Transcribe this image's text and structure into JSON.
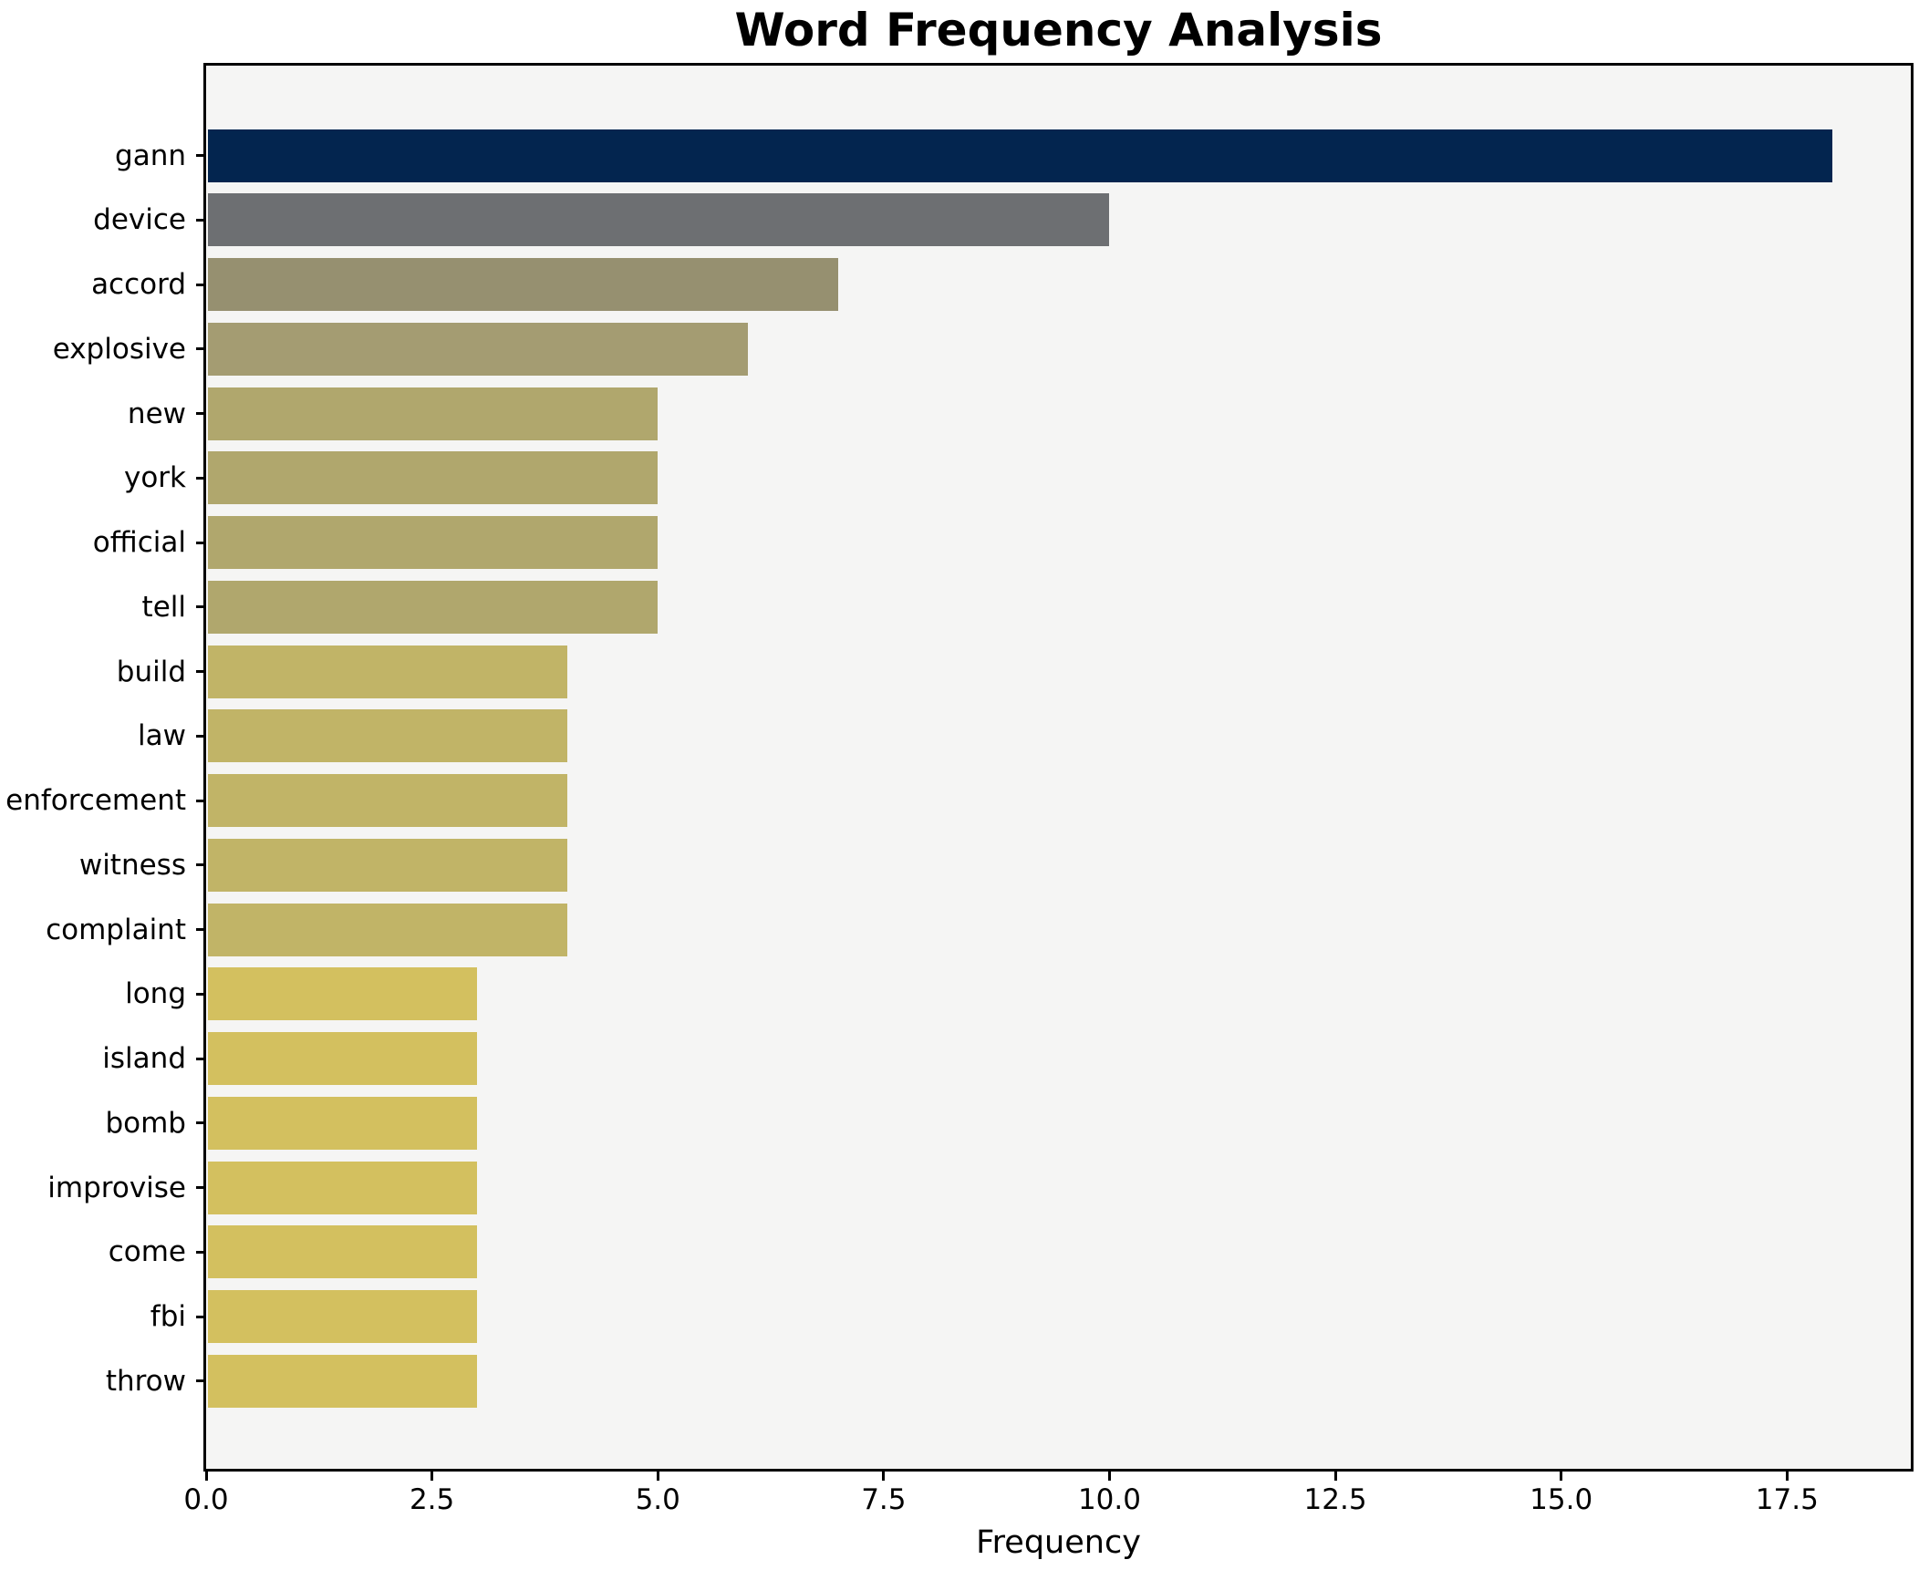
{
  "title": "Word Frequency Analysis",
  "chart_data": {
    "type": "bar",
    "orientation": "horizontal",
    "title": "Word Frequency Analysis",
    "xlabel": "Frequency",
    "ylabel": "",
    "categories": [
      "gann",
      "device",
      "accord",
      "explosive",
      "new",
      "york",
      "official",
      "tell",
      "build",
      "law",
      "enforcement",
      "witness",
      "complaint",
      "long",
      "island",
      "bomb",
      "improvise",
      "come",
      "fbi",
      "throw"
    ],
    "values": [
      18,
      10,
      7,
      6,
      5,
      5,
      5,
      5,
      4,
      4,
      4,
      4,
      4,
      3,
      3,
      3,
      3,
      3,
      3,
      3
    ],
    "bar_colors": [
      "#03254f",
      "#6d6f72",
      "#969070",
      "#a49c72",
      "#b0a76d",
      "#b0a76d",
      "#b0a76d",
      "#b0a76d",
      "#c1b467",
      "#c1b467",
      "#c1b467",
      "#c1b467",
      "#c1b467",
      "#d3c05f",
      "#d3c05f",
      "#d3c05f",
      "#d3c05f",
      "#d3c05f",
      "#d3c05f",
      "#d3c05f"
    ],
    "xlim": [
      0,
      18.87
    ],
    "x_ticks": [
      {
        "value": 0,
        "label": "0.0"
      },
      {
        "value": 2.5,
        "label": "2.5"
      },
      {
        "value": 5,
        "label": "5.0"
      },
      {
        "value": 7.5,
        "label": "7.5"
      },
      {
        "value": 10,
        "label": "10.0"
      },
      {
        "value": 12.5,
        "label": "12.5"
      },
      {
        "value": 15,
        "label": "15.0"
      },
      {
        "value": 17.5,
        "label": "17.5"
      }
    ],
    "grid": false,
    "legend": null,
    "plot_background": "#f5f5f4",
    "figure_background": "#ffffff",
    "spine_color": "#000000"
  }
}
